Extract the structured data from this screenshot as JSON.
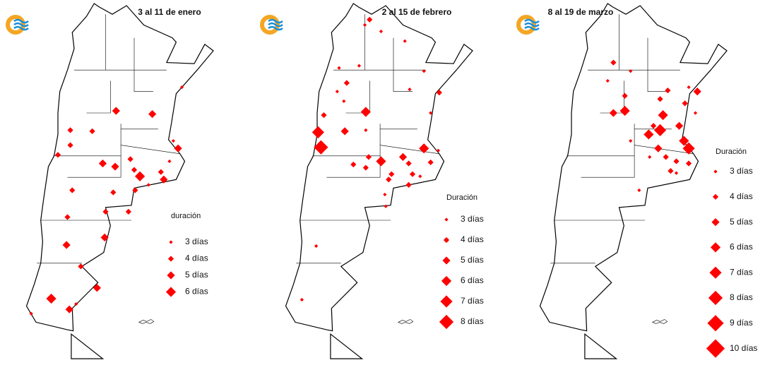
{
  "panels": [
    {
      "title": "3 al 11 de enero",
      "points": [
        {
          "lon": -57.0,
          "lat": -29.6,
          "days": 3
        },
        {
          "lon": -60.1,
          "lat": -32.1,
          "days": 5
        },
        {
          "lon": -63.9,
          "lat": -31.8,
          "days": 5
        },
        {
          "lon": -68.7,
          "lat": -33.6,
          "days": 4
        },
        {
          "lon": -66.4,
          "lat": -33.7,
          "days": 4
        },
        {
          "lon": -68.7,
          "lat": -35.0,
          "days": 4
        },
        {
          "lon": -70.0,
          "lat": -35.9,
          "days": 4
        },
        {
          "lon": -65.3,
          "lat": -36.7,
          "days": 5
        },
        {
          "lon": -64.0,
          "lat": -37.0,
          "days": 5
        },
        {
          "lon": -62.4,
          "lat": -36.3,
          "days": 4
        },
        {
          "lon": -62.0,
          "lat": -37.3,
          "days": 4
        },
        {
          "lon": -61.4,
          "lat": -37.9,
          "days": 6
        },
        {
          "lon": -59.2,
          "lat": -37.5,
          "days": 4
        },
        {
          "lon": -58.9,
          "lat": -38.2,
          "days": 5
        },
        {
          "lon": -60.5,
          "lat": -38.7,
          "days": 3
        },
        {
          "lon": -57.4,
          "lat": -35.3,
          "days": 5
        },
        {
          "lon": -57.9,
          "lat": -34.6,
          "days": 3
        },
        {
          "lon": -68.5,
          "lat": -39.2,
          "days": 4
        },
        {
          "lon": -64.2,
          "lat": -39.4,
          "days": 4
        },
        {
          "lon": -61.9,
          "lat": -39.2,
          "days": 4
        },
        {
          "lon": -65.0,
          "lat": -41.2,
          "days": 4
        },
        {
          "lon": -62.6,
          "lat": -41.2,
          "days": 4
        },
        {
          "lon": -69.0,
          "lat": -41.7,
          "days": 4
        },
        {
          "lon": -65.1,
          "lat": -43.6,
          "days": 5
        },
        {
          "lon": -69.1,
          "lat": -44.3,
          "days": 5
        },
        {
          "lon": -67.6,
          "lat": -46.3,
          "days": 4
        },
        {
          "lon": -65.9,
          "lat": -48.3,
          "days": 5
        },
        {
          "lon": -70.7,
          "lat": -49.3,
          "days": 6
        },
        {
          "lon": -68.8,
          "lat": -50.3,
          "days": 5
        },
        {
          "lon": -68.1,
          "lat": -49.8,
          "days": 3
        },
        {
          "lon": -72.8,
          "lat": -50.7,
          "days": 3
        },
        {
          "lon": -58.3,
          "lat": -36.5,
          "days": 3
        }
      ],
      "legend": {
        "title": "duración",
        "entries": [
          {
            "days": 3,
            "label": "3 días"
          },
          {
            "days": 4,
            "label": "4 días"
          },
          {
            "days": 5,
            "label": "5 días"
          },
          {
            "days": 6,
            "label": "6 días"
          }
        ]
      }
    },
    {
      "title": "2 al 15 de febrero",
      "points": [
        {
          "lon": -64.5,
          "lat": -23.3,
          "days": 4
        },
        {
          "lon": -65.0,
          "lat": -23.8,
          "days": 3
        },
        {
          "lon": -63.3,
          "lat": -24.4,
          "days": 3
        },
        {
          "lon": -60.8,
          "lat": -25.3,
          "days": 3
        },
        {
          "lon": -67.7,
          "lat": -27.8,
          "days": 3
        },
        {
          "lon": -65.6,
          "lat": -27.6,
          "days": 3
        },
        {
          "lon": -58.8,
          "lat": -28.1,
          "days": 3
        },
        {
          "lon": -60.3,
          "lat": -29.8,
          "days": 3
        },
        {
          "lon": -57.2,
          "lat": -30.1,
          "days": 4
        },
        {
          "lon": -66.9,
          "lat": -29.2,
          "days": 4
        },
        {
          "lon": -67.9,
          "lat": -30.0,
          "days": 3
        },
        {
          "lon": -67.2,
          "lat": -30.9,
          "days": 3
        },
        {
          "lon": -69.3,
          "lat": -32.2,
          "days": 4
        },
        {
          "lon": -64.9,
          "lat": -31.9,
          "days": 6
        },
        {
          "lon": -67.1,
          "lat": -33.7,
          "days": 5
        },
        {
          "lon": -69.9,
          "lat": -33.8,
          "days": 7
        },
        {
          "lon": -69.6,
          "lat": -35.2,
          "days": 8
        },
        {
          "lon": -64.9,
          "lat": -33.6,
          "days": 3
        },
        {
          "lon": -58.1,
          "lat": -32.0,
          "days": 3
        },
        {
          "lon": -58.8,
          "lat": -35.3,
          "days": 6
        },
        {
          "lon": -61.0,
          "lat": -36.1,
          "days": 5
        },
        {
          "lon": -63.3,
          "lat": -36.5,
          "days": 6
        },
        {
          "lon": -64.6,
          "lat": -36.1,
          "days": 4
        },
        {
          "lon": -66.2,
          "lat": -36.8,
          "days": 4
        },
        {
          "lon": -64.9,
          "lat": -37.1,
          "days": 4
        },
        {
          "lon": -62.2,
          "lat": -37.7,
          "days": 4
        },
        {
          "lon": -62.5,
          "lat": -38.2,
          "days": 4
        },
        {
          "lon": -60.4,
          "lat": -36.7,
          "days": 4
        },
        {
          "lon": -60.0,
          "lat": -37.7,
          "days": 4
        },
        {
          "lon": -58.1,
          "lat": -36.6,
          "days": 4
        },
        {
          "lon": -59.2,
          "lat": -37.9,
          "days": 3
        },
        {
          "lon": -60.4,
          "lat": -38.7,
          "days": 4
        },
        {
          "lon": -62.9,
          "lat": -39.6,
          "days": 3
        },
        {
          "lon": -62.8,
          "lat": -40.7,
          "days": 3
        },
        {
          "lon": -70.1,
          "lat": -44.4,
          "days": 3
        },
        {
          "lon": -71.6,
          "lat": -49.4,
          "days": 3
        },
        {
          "lon": -57.3,
          "lat": -35.5,
          "days": 3
        }
      ],
      "legend": {
        "title": "Duración",
        "entries": [
          {
            "days": 3,
            "label": "3 días"
          },
          {
            "days": 4,
            "label": "4 días"
          },
          {
            "days": 5,
            "label": "5 días"
          },
          {
            "days": 6,
            "label": "6 días"
          },
          {
            "days": 7,
            "label": "7 días"
          },
          {
            "days": 8,
            "label": "8 días"
          }
        ]
      }
    },
    {
      "title": "8 al 19 de marzo",
      "points": [
        {
          "lon": -65.6,
          "lat": -27.3,
          "days": 4
        },
        {
          "lon": -66.2,
          "lat": -29.0,
          "days": 3
        },
        {
          "lon": -63.8,
          "lat": -28.1,
          "days": 3
        },
        {
          "lon": -64.4,
          "lat": -30.4,
          "days": 4
        },
        {
          "lon": -65.6,
          "lat": -32.0,
          "days": 5
        },
        {
          "lon": -64.4,
          "lat": -31.8,
          "days": 6
        },
        {
          "lon": -60.7,
          "lat": -30.7,
          "days": 4
        },
        {
          "lon": -59.9,
          "lat": -29.9,
          "days": 4
        },
        {
          "lon": -57.7,
          "lat": -29.6,
          "days": 3
        },
        {
          "lon": -56.8,
          "lat": -30.0,
          "days": 5
        },
        {
          "lon": -58.1,
          "lat": -31.1,
          "days": 4
        },
        {
          "lon": -60.4,
          "lat": -32.2,
          "days": 6
        },
        {
          "lon": -60.7,
          "lat": -33.6,
          "days": 7
        },
        {
          "lon": -61.9,
          "lat": -34.0,
          "days": 6
        },
        {
          "lon": -58.7,
          "lat": -33.2,
          "days": 5
        },
        {
          "lon": -58.2,
          "lat": -34.6,
          "days": 6
        },
        {
          "lon": -60.9,
          "lat": -35.3,
          "days": 5
        },
        {
          "lon": -60.1,
          "lat": -36.1,
          "days": 4
        },
        {
          "lon": -61.8,
          "lat": -36.1,
          "days": 3
        },
        {
          "lon": -59.0,
          "lat": -36.5,
          "days": 4
        },
        {
          "lon": -57.7,
          "lat": -35.3,
          "days": 7
        },
        {
          "lon": -59.6,
          "lat": -37.4,
          "days": 4
        },
        {
          "lon": -57.7,
          "lat": -36.7,
          "days": 4
        },
        {
          "lon": -59.0,
          "lat": -37.6,
          "days": 3
        },
        {
          "lon": -63.8,
          "lat": -34.6,
          "days": 3
        },
        {
          "lon": -62.9,
          "lat": -39.2,
          "days": 3
        },
        {
          "lon": -61.4,
          "lat": -33.2,
          "days": 4
        },
        {
          "lon": -57.0,
          "lat": -32.0,
          "days": 3
        }
      ],
      "legend": {
        "title": "Duración",
        "entries": [
          {
            "days": 3,
            "label": "3 días"
          },
          {
            "days": 4,
            "label": "4 días"
          },
          {
            "days": 5,
            "label": "5 días"
          },
          {
            "days": 6,
            "label": "6 días"
          },
          {
            "days": 7,
            "label": "7 días"
          },
          {
            "days": 8,
            "label": "8 días"
          },
          {
            "days": 9,
            "label": "9 días"
          },
          {
            "days": 10,
            "label": "10 días"
          }
        ]
      }
    }
  ]
}
